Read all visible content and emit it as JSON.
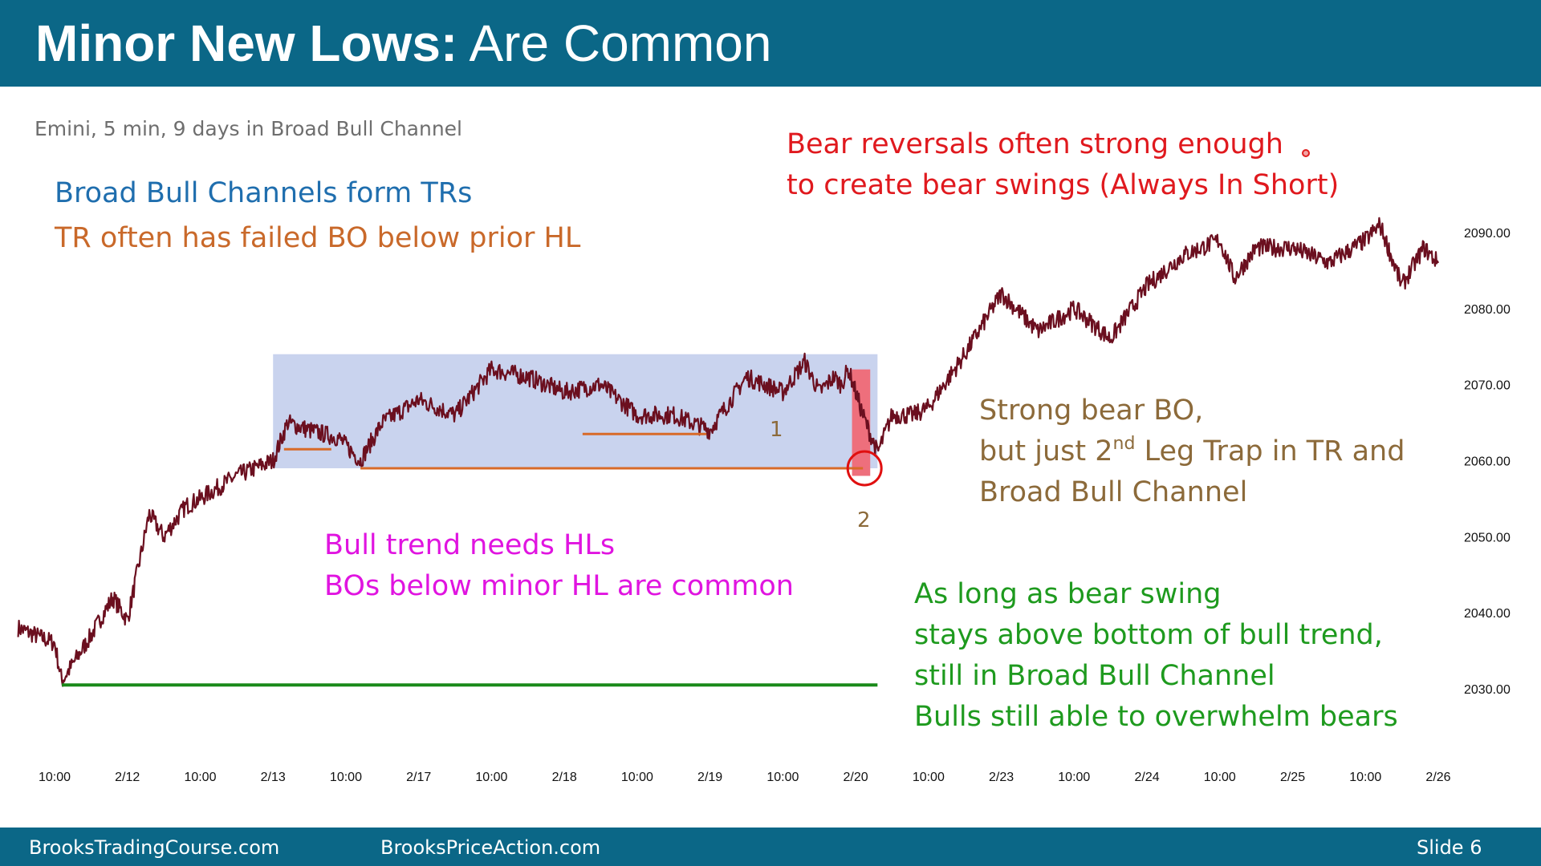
{
  "slide": {
    "title_bold": "Minor New Lows:",
    "title_rest": " Are Common",
    "subtitle": "Emini, 5 min, 9 days in Broad Bull Channel",
    "footer_left": "BrooksTradingCourse.com",
    "footer_middle": "BrooksPriceAction.com",
    "footer_right": "Slide  6"
  },
  "annotations": {
    "blue_line": "Broad Bull Channels form TRs",
    "orange_line": "TR often has failed BO below prior HL",
    "red_line1": "Bear reversals often strong enough",
    "red_line2": "to create bear swings (Always In Short)",
    "brown_line1": "Strong bear BO,",
    "brown_line2_a": "but just 2",
    "brown_line2_sup": "nd",
    "brown_line2_b": " Leg Trap in TR and",
    "brown_line3": "Broad Bull Channel",
    "magenta_line1": "Bull trend needs HLs",
    "magenta_line2": "BOs below minor HL are common",
    "green_line1": "As long as bear swing",
    "green_line2": "stays above bottom of bull trend,",
    "green_line3": "still in Broad Bull Channel",
    "green_line4": "Bulls still able to overwhelm bears",
    "marker_1": "1",
    "marker_2": "2"
  },
  "colors": {
    "header_bg": "#0b6787",
    "price_line": "#6b0f1f",
    "tr_box": "#c9d3ee",
    "bear_bo_box": "#ee6f7c",
    "hl_lines": "#d86a28",
    "trend_bottom": "#1a8a1a",
    "circle": "#e01010"
  },
  "chart_data": {
    "type": "line",
    "title": "",
    "xlabel": "",
    "ylabel": "",
    "ylim": [
      2023,
      2095
    ],
    "yticks": [
      2090,
      2080,
      2070,
      2060,
      2050,
      2040,
      2030
    ],
    "ytick_labels": [
      "2090.00",
      "2080.00",
      "2070.00",
      "2060.00",
      "2050.00",
      "2040.00",
      "2030.00"
    ],
    "xtick_labels": [
      "10:00",
      "2/12",
      "10:00",
      "2/13",
      "10:00",
      "2/17",
      "10:00",
      "2/18",
      "10:00",
      "2/19",
      "10:00",
      "2/20",
      "10:00",
      "2/23",
      "10:00",
      "2/24",
      "10:00",
      "2/25",
      "10:00",
      "2/26"
    ],
    "x_index_range": [
      0,
      19
    ],
    "series": [
      {
        "x": [
          -0.5,
          0.0,
          0.1,
          0.5,
          0.8,
          1.0,
          1.3,
          1.5,
          1.8,
          2.0,
          2.5,
          3.0,
          3.2,
          3.5,
          3.9,
          4.2,
          4.5,
          5.0,
          5.5,
          6.0,
          6.5,
          7.0,
          7.5,
          8.0,
          8.5,
          9.0,
          9.5,
          10.0,
          10.3,
          10.5,
          10.7,
          10.8,
          10.9,
          11.1,
          11.3,
          11.5,
          11.8,
          12.0,
          12.5,
          13.0,
          13.5,
          14.0,
          14.5,
          15.0,
          15.5,
          16.0,
          16.2,
          16.5,
          17.0,
          17.5,
          18.0,
          18.2,
          18.5,
          18.8,
          19.0
        ],
        "y": [
          2038,
          2036,
          2031,
          2037,
          2042,
          2039,
          2053,
          2050,
          2054,
          2055,
          2058,
          2060,
          2065,
          2064,
          2063,
          2060,
          2065,
          2068,
          2066,
          2072,
          2071,
          2069,
          2070,
          2066,
          2066,
          2064,
          2071,
          2069,
          2073,
          2069,
          2071,
          2070,
          2072,
          2066,
          2061,
          2066,
          2066,
          2067,
          2074,
          2082,
          2077,
          2080,
          2076,
          2083,
          2087,
          2089,
          2084,
          2088,
          2088,
          2086,
          2089,
          2091,
          2083,
          2088,
          2086
        ]
      }
    ],
    "tr_box": {
      "x": [
        3.0,
        11.3
      ],
      "y": [
        2059,
        2074
      ]
    },
    "bear_bo_box": {
      "x": [
        10.95,
        11.2
      ],
      "y": [
        2058,
        2072
      ]
    },
    "hl_lines": [
      {
        "x": [
          3.15,
          3.8
        ],
        "y": 2061.5
      },
      {
        "x": [
          4.2,
          11.1
        ],
        "y": 2059
      },
      {
        "x": [
          7.25,
          8.95
        ],
        "y": 2063.5
      }
    ],
    "trend_bottom_line": {
      "x": [
        0.1,
        11.3
      ],
      "y": 2030.5
    },
    "circled_low": {
      "x": 11.1,
      "y": 2059
    }
  }
}
